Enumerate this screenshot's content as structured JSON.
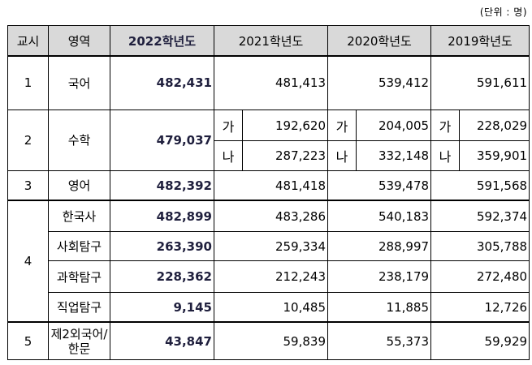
{
  "unit_note": "(단위 : 명)",
  "headers": [
    "교시",
    "영역",
    "2022학년도",
    "2021학년도",
    "2020학년도",
    "2019학년도"
  ],
  "sub_labels": {
    "ga": "가",
    "na": "나"
  },
  "rows": {
    "r1": {
      "period": "1",
      "area": "국어",
      "y2022": "482,431",
      "y2021": "481,413",
      "y2020": "539,412",
      "y2019": "591,611"
    },
    "r2": {
      "period": "2",
      "area": "수학",
      "y2022": "479,037",
      "ga": {
        "y2021": "192,620",
        "y2020": "204,005",
        "y2019": "228,029"
      },
      "na": {
        "y2021": "287,223",
        "y2020": "332,148",
        "y2019": "359,901"
      }
    },
    "r3": {
      "period": "3",
      "area": "영어",
      "y2022": "482,392",
      "y2021": "481,418",
      "y2020": "539,478",
      "y2019": "591,568"
    },
    "r4": {
      "period": "4",
      "items": [
        {
          "area": "한국사",
          "y2022": "482,899",
          "y2021": "483,286",
          "y2020": "540,183",
          "y2019": "592,374"
        },
        {
          "area": "사회탐구",
          "y2022": "263,390",
          "y2021": "259,334",
          "y2020": "288,997",
          "y2019": "305,788"
        },
        {
          "area": "과학탐구",
          "y2022": "228,362",
          "y2021": "212,243",
          "y2020": "238,179",
          "y2019": "272,480"
        },
        {
          "area": "직업탐구",
          "y2022": "9,145",
          "y2021": "10,485",
          "y2020": "11,885",
          "y2019": "12,726"
        }
      ]
    },
    "r5": {
      "period": "5",
      "area_line1": "제2외국어/",
      "area_line2": "한문",
      "y2022": "43,847",
      "y2021": "59,839",
      "y2020": "55,373",
      "y2019": "59,929"
    }
  }
}
